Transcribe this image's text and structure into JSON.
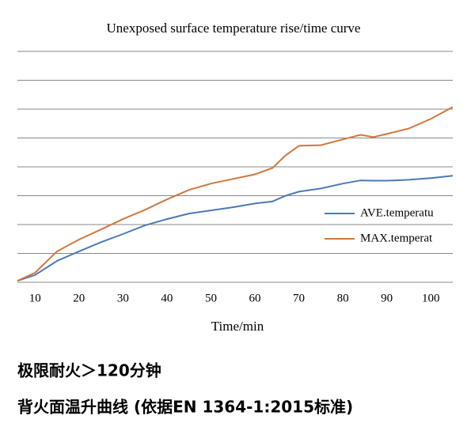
{
  "chart_data": {
    "type": "line",
    "title": "Unexposed surface temperature rise/time curve",
    "x_label": "Time/min",
    "x": [
      6,
      10,
      15,
      20,
      25,
      30,
      35,
      40,
      45,
      50,
      55,
      60,
      64,
      67,
      70,
      75,
      80,
      84,
      87,
      90,
      95,
      100,
      105
    ],
    "series": [
      {
        "name": "AVE.temperatu",
        "color": "#4a7ab5",
        "values": [
          0.05,
          0.25,
          0.74,
          1.07,
          1.39,
          1.67,
          1.97,
          2.19,
          2.38,
          2.49,
          2.6,
          2.73,
          2.8,
          3.0,
          3.14,
          3.25,
          3.42,
          3.53,
          3.52,
          3.52,
          3.55,
          3.61,
          3.69
        ]
      },
      {
        "name": "MAX.temperat",
        "color": "#d0773f",
        "values": [
          0.05,
          0.33,
          1.07,
          1.48,
          1.83,
          2.19,
          2.51,
          2.87,
          3.2,
          3.42,
          3.58,
          3.74,
          3.96,
          4.4,
          4.73,
          4.75,
          4.95,
          5.11,
          5.03,
          5.14,
          5.33,
          5.66,
          6.07
        ]
      }
    ],
    "xlim": [
      6,
      105
    ],
    "xticks": [
      10,
      20,
      30,
      40,
      50,
      60,
      70,
      80,
      90,
      100
    ],
    "ylim": [
      0,
      8
    ],
    "ygrid": [
      0,
      1,
      2,
      3,
      4,
      5,
      6,
      7,
      8
    ],
    "grid": true
  },
  "caption": {
    "line1": "极限耐火＞120分钟",
    "line2": "背火面温升曲线 (依据EN 1364-1:2015标准)"
  }
}
